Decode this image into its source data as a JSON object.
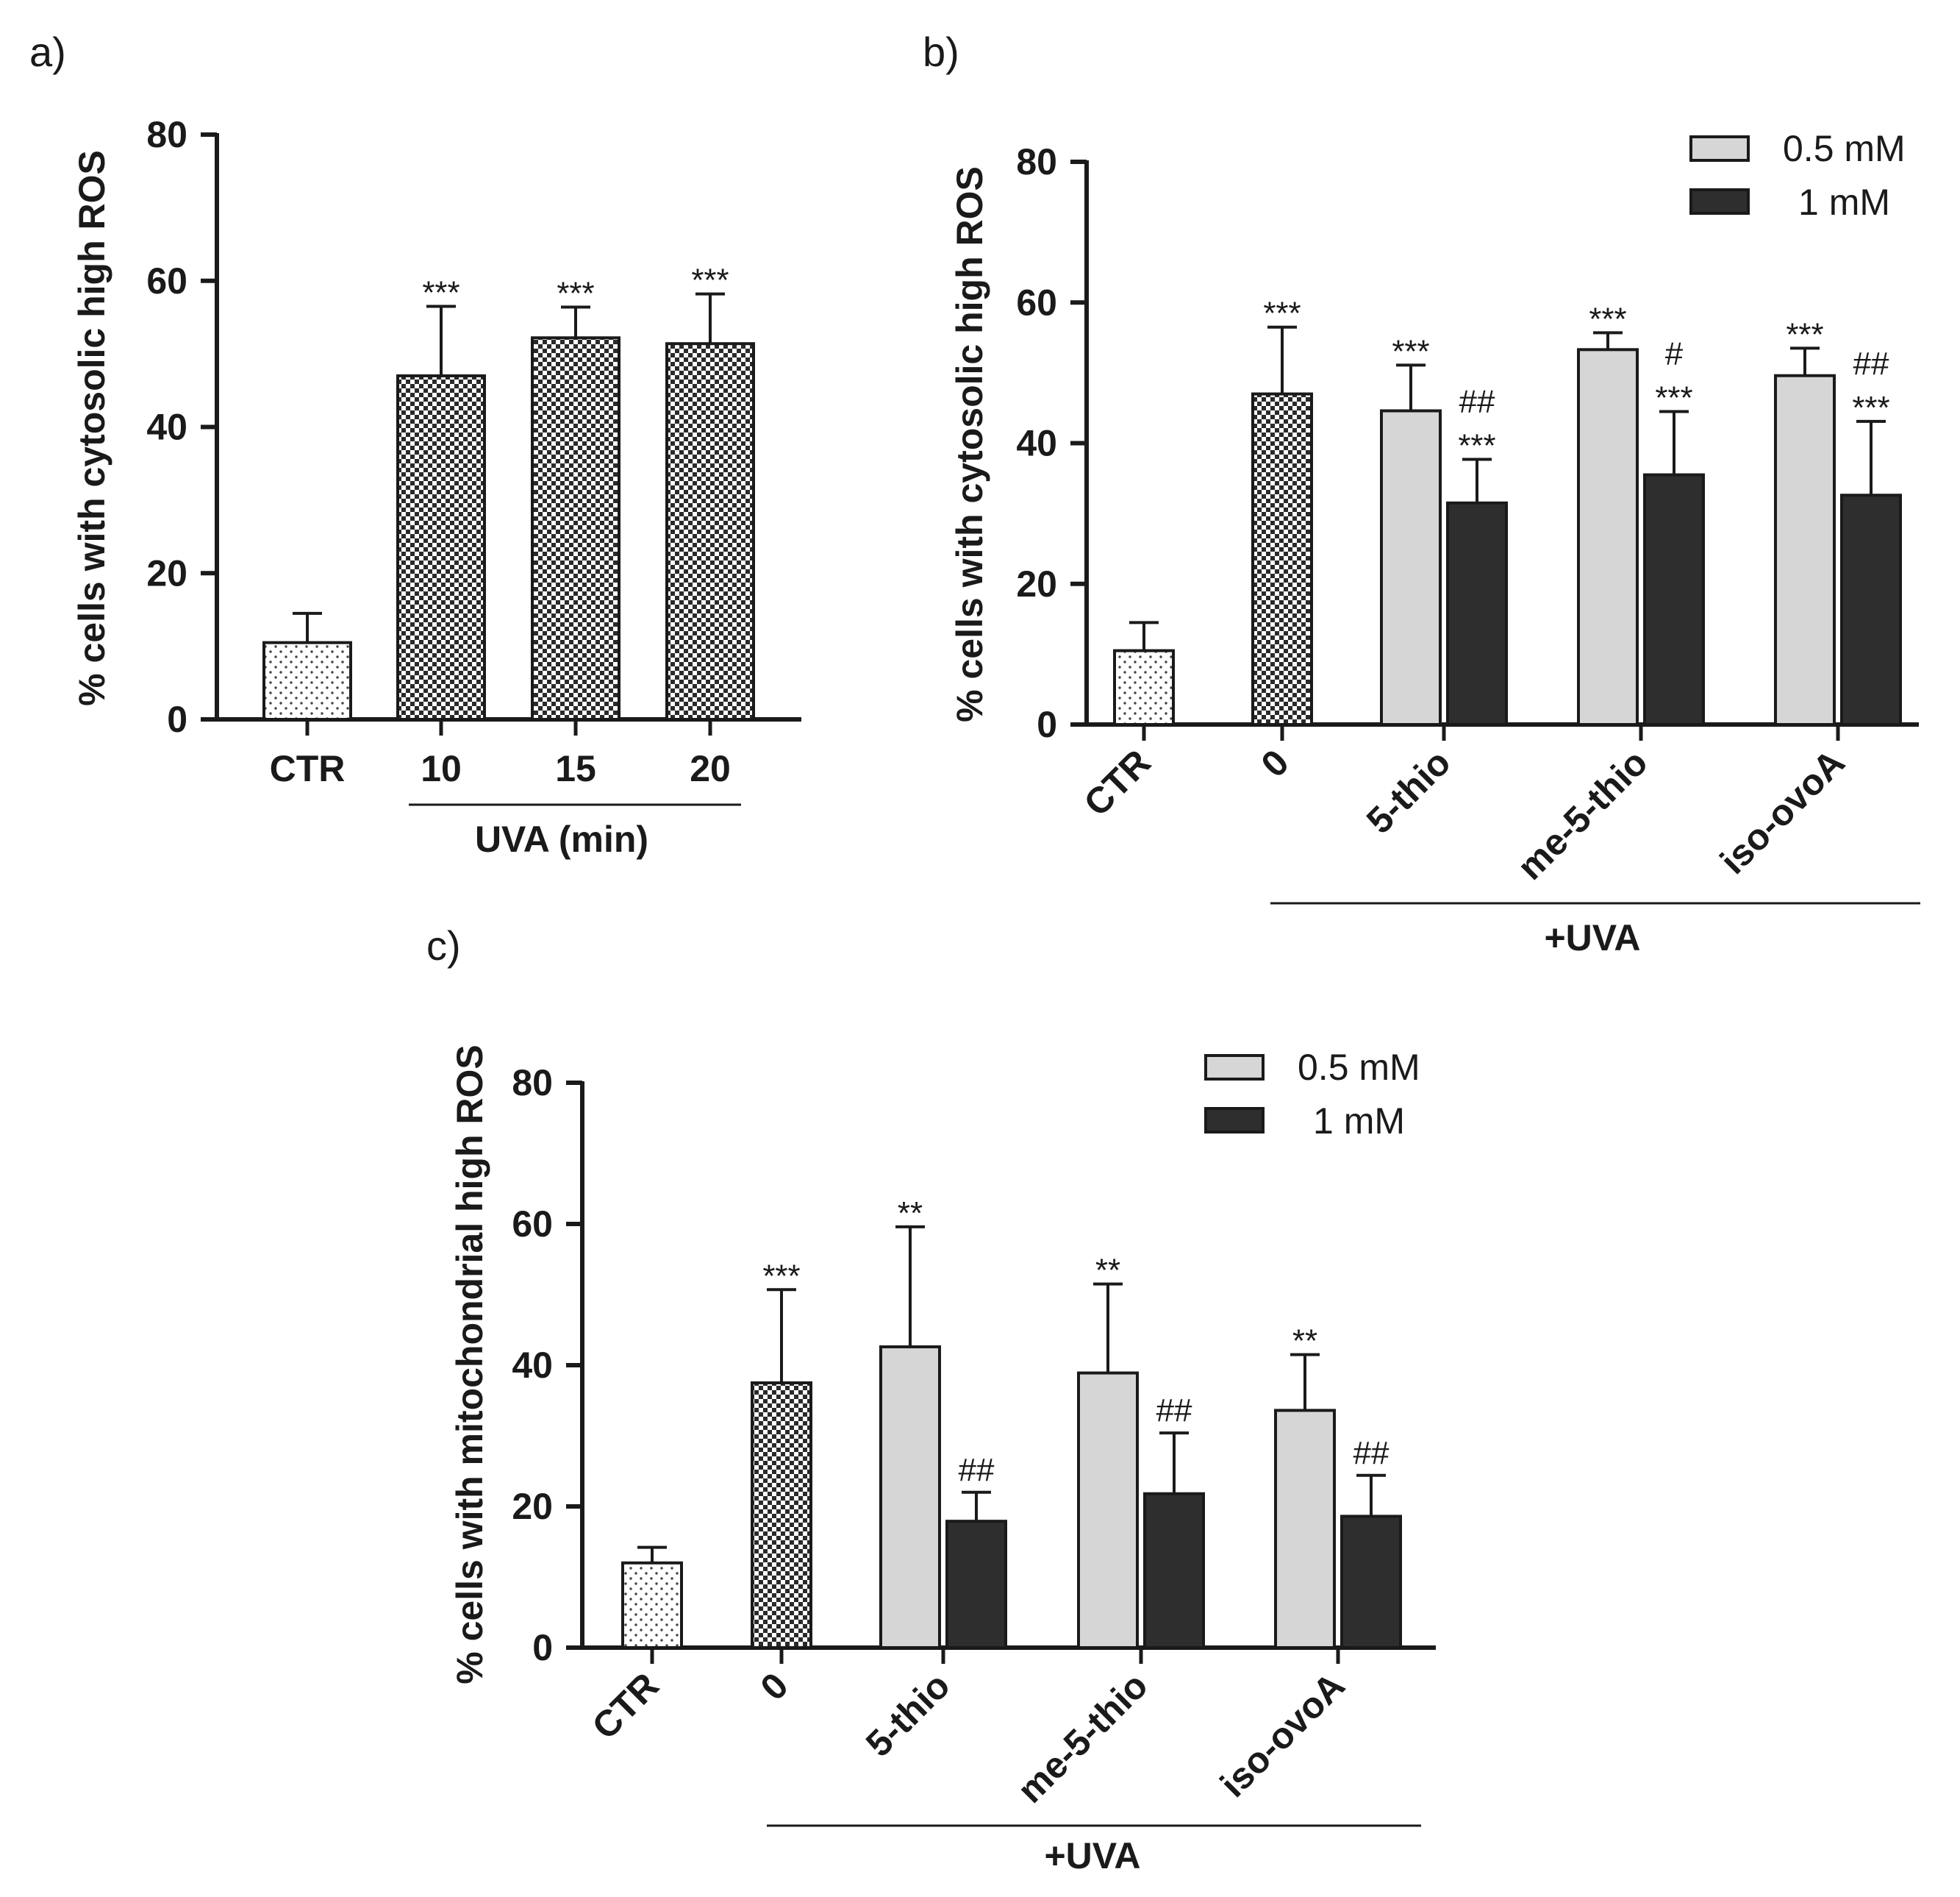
{
  "colors": {
    "ink": "#1a1a1a",
    "light_bar": "#d6d6d6",
    "dark_bar": "#2e2e2e",
    "checker_dark": "#2a2a2a",
    "checker_light": "#ffffff",
    "dot_color": "#444444"
  },
  "chart_data": [
    {
      "id": "a",
      "type": "bar",
      "panel_label": "a)",
      "ylabel": "% cells with cytosolic high ROS",
      "ylim": [
        0,
        80
      ],
      "yticks": [
        0,
        20,
        40,
        60,
        80
      ],
      "group_label": "UVA (min)",
      "categories": [
        {
          "label": "CTR",
          "bars": [
            {
              "value": 10.5,
              "err": 4,
              "fill": "dots",
              "sig": []
            }
          ]
        },
        {
          "label": "10",
          "bars": [
            {
              "value": 47,
              "err": 9.5,
              "fill": "checker",
              "sig": [
                "***"
              ]
            }
          ]
        },
        {
          "label": "15",
          "bars": [
            {
              "value": 52.2,
              "err": 4.2,
              "fill": "checker",
              "sig": [
                "***"
              ]
            }
          ]
        },
        {
          "label": "20",
          "bars": [
            {
              "value": 51.4,
              "err": 6.8,
              "fill": "checker",
              "sig": [
                "***"
              ]
            }
          ]
        }
      ]
    },
    {
      "id": "b",
      "type": "bar",
      "panel_label": "b)",
      "ylabel": "% cells with cytosolic high ROS",
      "ylim": [
        0,
        80
      ],
      "yticks": [
        0,
        20,
        40,
        60,
        80
      ],
      "group_label": "+UVA",
      "legend": [
        {
          "label": "0.5 mM",
          "fill": "light"
        },
        {
          "label": "1 mM",
          "fill": "dark"
        }
      ],
      "categories": [
        {
          "label": "CTR",
          "bars": [
            {
              "value": 10.5,
              "err": 4,
              "fill": "dots",
              "sig": []
            }
          ]
        },
        {
          "label": "0",
          "bars": [
            {
              "value": 47,
              "err": 9.5,
              "fill": "checker",
              "sig": [
                "***"
              ]
            }
          ]
        },
        {
          "label": "5-thio",
          "bars": [
            {
              "value": 44.6,
              "err": 6.5,
              "fill": "light",
              "sig": [
                "***"
              ]
            },
            {
              "value": 31.5,
              "err": 6.2,
              "fill": "dark",
              "sig": [
                "##",
                "***"
              ]
            }
          ]
        },
        {
          "label": "me-5-thio",
          "bars": [
            {
              "value": 53.3,
              "err": 2.4,
              "fill": "light",
              "sig": [
                "***"
              ]
            },
            {
              "value": 35.5,
              "err": 9.0,
              "fill": "dark",
              "sig": [
                "#",
                "***"
              ]
            }
          ]
        },
        {
          "label": "iso-ovoA",
          "bars": [
            {
              "value": 49.6,
              "err": 3.9,
              "fill": "light",
              "sig": [
                "***"
              ]
            },
            {
              "value": 32.6,
              "err": 10.5,
              "fill": "dark",
              "sig": [
                "##",
                "***"
              ]
            }
          ]
        }
      ]
    },
    {
      "id": "c",
      "type": "bar",
      "panel_label": "c)",
      "ylabel": "% cells with mitochondrial high ROS",
      "ylim": [
        0,
        80
      ],
      "yticks": [
        0,
        20,
        40,
        60,
        80
      ],
      "group_label": "+UVA",
      "legend": [
        {
          "label": "0.5 mM",
          "fill": "light"
        },
        {
          "label": "1 mM",
          "fill": "dark"
        }
      ],
      "categories": [
        {
          "label": "CTR",
          "bars": [
            {
              "value": 12,
              "err": 2.2,
              "fill": "dots",
              "sig": []
            }
          ]
        },
        {
          "label": "0",
          "bars": [
            {
              "value": 37.5,
              "err": 13.2,
              "fill": "checker",
              "sig": [
                "***"
              ]
            }
          ]
        },
        {
          "label": "5-thio",
          "bars": [
            {
              "value": 42.6,
              "err": 17,
              "fill": "light",
              "sig": [
                "**"
              ]
            },
            {
              "value": 17.9,
              "err": 4.1,
              "fill": "dark",
              "sig": [
                "##"
              ]
            }
          ]
        },
        {
          "label": "me-5-thio",
          "bars": [
            {
              "value": 38.9,
              "err": 12.6,
              "fill": "light",
              "sig": [
                "**"
              ]
            },
            {
              "value": 21.8,
              "err": 8.6,
              "fill": "dark",
              "sig": [
                "##"
              ]
            }
          ]
        },
        {
          "label": "iso-ovoA",
          "bars": [
            {
              "value": 33.6,
              "err": 7.9,
              "fill": "light",
              "sig": [
                "**"
              ]
            },
            {
              "value": 18.6,
              "err": 5.8,
              "fill": "dark",
              "sig": [
                "##"
              ]
            }
          ]
        }
      ]
    }
  ]
}
